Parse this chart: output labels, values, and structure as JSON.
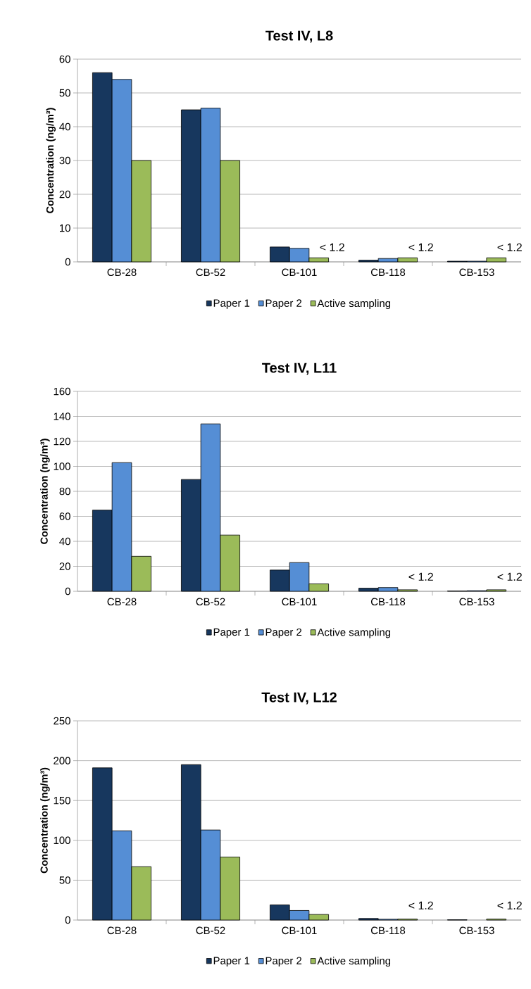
{
  "chart_data": [
    {
      "type": "bar",
      "title": "Test IV, L8",
      "ylabel": "Concentration (ng/m³)",
      "categories": [
        "CB-28",
        "CB-52",
        "CB-101",
        "CB-118",
        "CB-153"
      ],
      "series": [
        {
          "name": "Paper 1",
          "color": "#17375e",
          "values": [
            56,
            45,
            4.4,
            0.5,
            0.2
          ]
        },
        {
          "name": "Paper 2",
          "color": "#558ed5",
          "values": [
            54,
            45.5,
            4,
            1,
            0.2
          ]
        },
        {
          "name": "Active sampling",
          "color": "#9bbb59",
          "values": [
            30,
            30,
            1.2,
            1.2,
            1.2
          ]
        }
      ],
      "ylim": [
        0,
        60
      ],
      "yticks": [
        0,
        10,
        20,
        30,
        40,
        50,
        60
      ],
      "grid": "y",
      "legend": "bottom",
      "annotations": [
        "< 1.2",
        "< 1.2",
        "< 1.2"
      ]
    },
    {
      "type": "bar",
      "title": "Test IV, L11",
      "ylabel": "Concentration (ng/m³)",
      "categories": [
        "CB-28",
        "CB-52",
        "CB-101",
        "CB-118",
        "CB-153"
      ],
      "series": [
        {
          "name": "Paper 1",
          "color": "#17375e",
          "values": [
            65,
            89.5,
            17,
            2.5,
            0.3
          ]
        },
        {
          "name": "Paper 2",
          "color": "#558ed5",
          "values": [
            103,
            134,
            23,
            3,
            0.5
          ]
        },
        {
          "name": "Active sampling",
          "color": "#9bbb59",
          "values": [
            28,
            45,
            6,
            1.2,
            1.2
          ]
        }
      ],
      "ylim": [
        0,
        160
      ],
      "yticks": [
        0,
        20,
        40,
        60,
        80,
        100,
        120,
        140,
        160
      ],
      "grid": "y",
      "legend": "bottom",
      "annotations": [
        "< 1.2",
        "< 1.2"
      ]
    },
    {
      "type": "bar",
      "title": "Test IV, L12",
      "ylabel": "Concentration (ng/m³)",
      "categories": [
        "CB-28",
        "CB-52",
        "CB-101",
        "CB-118",
        "CB-153"
      ],
      "series": [
        {
          "name": "Paper 1",
          "color": "#17375e",
          "values": [
            191,
            195,
            19,
            2,
            0.3
          ]
        },
        {
          "name": "Paper 2",
          "color": "#558ed5",
          "values": [
            112,
            113,
            12,
            1,
            null
          ]
        },
        {
          "name": "Active sampling",
          "color": "#9bbb59",
          "values": [
            67,
            79,
            7,
            1.2,
            1.2
          ]
        }
      ],
      "ylim": [
        0,
        250
      ],
      "yticks": [
        0,
        50,
        100,
        150,
        200,
        250
      ],
      "grid": "y",
      "legend": "bottom",
      "annotations": [
        "< 1.2",
        "< 1.2"
      ]
    }
  ]
}
